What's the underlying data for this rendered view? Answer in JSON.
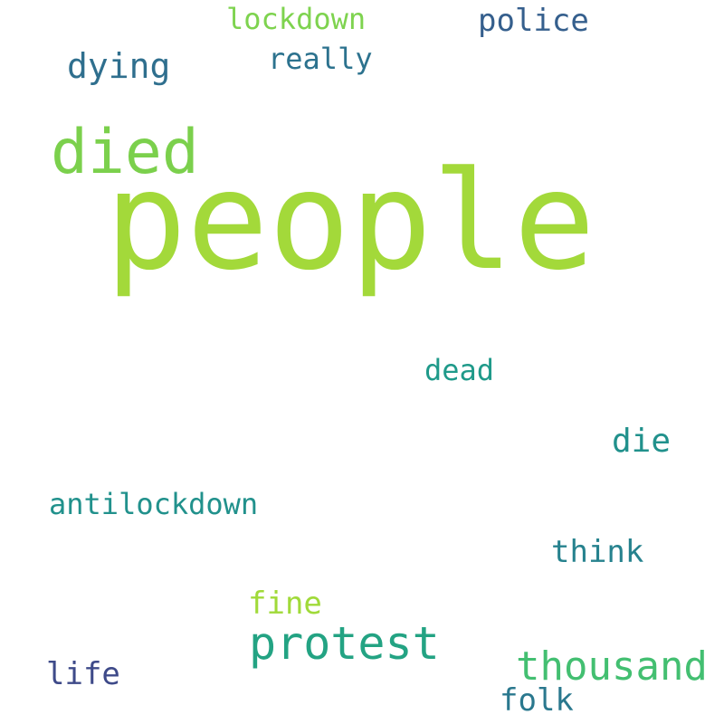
{
  "word_cloud": {
    "background": "#ffffff",
    "words": [
      {
        "id": "people",
        "text": "people",
        "color": "#a3d93a"
      },
      {
        "id": "died",
        "text": "died",
        "color": "#7bd04c"
      },
      {
        "id": "protest",
        "text": "protest",
        "color": "#23a383"
      },
      {
        "id": "thousand",
        "text": "thousand",
        "color": "#43bf71"
      },
      {
        "id": "dying",
        "text": "dying",
        "color": "#2f6f8e"
      },
      {
        "id": "police",
        "text": "police",
        "color": "#355f8d"
      },
      {
        "id": "die",
        "text": "die",
        "color": "#21918c"
      },
      {
        "id": "lockdown",
        "text": "lockdown",
        "color": "#7ed34f"
      },
      {
        "id": "really",
        "text": "really",
        "color": "#2c728e"
      },
      {
        "id": "antilockdown",
        "text": "antilockdown",
        "color": "#21918c"
      },
      {
        "id": "think",
        "text": "think",
        "color": "#26828e"
      },
      {
        "id": "dead",
        "text": "dead",
        "color": "#1f9a8a"
      },
      {
        "id": "fine",
        "text": "fine",
        "color": "#a0da39"
      },
      {
        "id": "life",
        "text": "life",
        "color": "#3e4a89"
      },
      {
        "id": "folk",
        "text": "folk",
        "color": "#2a788e"
      }
    ]
  }
}
